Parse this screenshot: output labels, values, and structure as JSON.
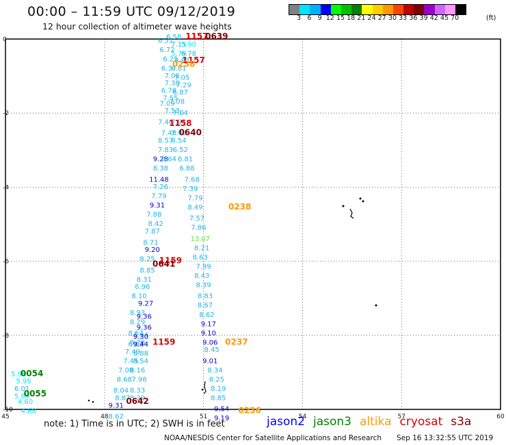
{
  "title": "00:00 – 11:59 UTC 09/12/2019",
  "subtitle": "12 hour collection of altimeter wave heights",
  "scale": {
    "colors": [
      "#808080",
      "#00e5ff",
      "#00b0ff",
      "#0000ff",
      "#00ff00",
      "#00c000",
      "#008000",
      "#ffff00",
      "#ffcc00",
      "#ff9900",
      "#ff4400",
      "#c00000",
      "#800000",
      "#9900cc",
      "#cc66ff",
      "#ff99ff",
      "#000000"
    ],
    "labels": [
      "3",
      "6",
      "9",
      "12",
      "15",
      "18",
      "21",
      "24",
      "27",
      "30",
      "33",
      "36",
      "39",
      "42",
      "45",
      "70"
    ],
    "unit": "(ft)"
  },
  "axes": {
    "x_ticks": [
      "45",
      "48",
      "51",
      "54",
      "57",
      "60"
    ],
    "y_ticks": [
      "0",
      "-2",
      "-4",
      "-6",
      "-8",
      "-10"
    ]
  },
  "note": "note:  1) Time is in UTC;  2) SWH is in feet",
  "satellites": [
    {
      "name": "jason2",
      "color": "#0000ff"
    },
    {
      "name": "jason3",
      "color": "#008000"
    },
    {
      "name": "altika",
      "color": "#ff9900"
    },
    {
      "name": "cryosat",
      "color": "#dd0000"
    },
    {
      "name": "s3a",
      "color": "#800000"
    }
  ],
  "credit": "NOAA/NESDIS Center for Satellite Applications and Research",
  "timestamp": "Sep 16 13:32:55 UTC 2019",
  "chart_data": {
    "type": "scatter",
    "xlim": [
      45,
      60
    ],
    "ylim": [
      -10,
      0
    ],
    "grid": true,
    "track_times": [
      {
        "label": "1157",
        "lon": 50.8,
        "lat": 0.0,
        "sat": "cryosat"
      },
      {
        "label": "0639",
        "lon": 51.4,
        "lat": 0.0,
        "sat": "s3a"
      },
      {
        "label": "1157",
        "lon": 50.7,
        "lat": -0.65,
        "sat": "cryosat"
      },
      {
        "label": "0238",
        "lon": 50.4,
        "lat": -0.75,
        "sat": "altika"
      },
      {
        "label": "1158",
        "lon": 50.3,
        "lat": -2.35,
        "sat": "cryosat"
      },
      {
        "label": "0640",
        "lon": 50.6,
        "lat": -2.6,
        "sat": "s3a"
      },
      {
        "label": "0238",
        "lon": 52.1,
        "lat": -4.6,
        "sat": "altika"
      },
      {
        "label": "1159",
        "lon": 50.0,
        "lat": -6.05,
        "sat": "cryosat"
      },
      {
        "label": "0641",
        "lon": 49.8,
        "lat": -6.15,
        "sat": "s3a"
      },
      {
        "label": "1159",
        "lon": 49.8,
        "lat": -8.25,
        "sat": "cryosat"
      },
      {
        "label": "0237",
        "lon": 52.0,
        "lat": -8.25,
        "sat": "altika"
      },
      {
        "label": "0054",
        "lon": 45.8,
        "lat": -9.1,
        "sat": "jason3"
      },
      {
        "label": "0055",
        "lon": 45.9,
        "lat": -9.65,
        "sat": "jason3"
      },
      {
        "label": "0642",
        "lon": 49.0,
        "lat": -9.85,
        "sat": "s3a"
      },
      {
        "label": "0236",
        "lon": 52.4,
        "lat": -10.1,
        "sat": "altika"
      }
    ],
    "points": [
      {
        "lon": 49.85,
        "lat": -0.1,
        "swh": "6.51"
      },
      {
        "lon": 50.1,
        "lat": -0.0,
        "swh": "6.58"
      },
      {
        "lon": 50.25,
        "lat": -0.2,
        "swh": "7.15"
      },
      {
        "lon": 50.55,
        "lat": -0.2,
        "swh": "5.90"
      },
      {
        "lon": 49.9,
        "lat": -0.35,
        "swh": "6.72"
      },
      {
        "lon": 50.25,
        "lat": -0.45,
        "swh": "5.79"
      },
      {
        "lon": 50.55,
        "lat": -0.45,
        "swh": "6.78"
      },
      {
        "lon": 50.0,
        "lat": -0.6,
        "swh": "6.25"
      },
      {
        "lon": 50.35,
        "lat": -0.65,
        "swh": "6.82"
      },
      {
        "lon": 49.95,
        "lat": -0.85,
        "swh": "6.37"
      },
      {
        "lon": 50.25,
        "lat": -0.85,
        "swh": "6.81"
      },
      {
        "lon": 50.05,
        "lat": -1.05,
        "swh": "7.06"
      },
      {
        "lon": 50.35,
        "lat": -1.1,
        "swh": "7.05"
      },
      {
        "lon": 50.05,
        "lat": -1.25,
        "swh": "7.38"
      },
      {
        "lon": 50.4,
        "lat": -1.3,
        "swh": "7.29"
      },
      {
        "lon": 49.95,
        "lat": -1.45,
        "swh": "6.78"
      },
      {
        "lon": 50.3,
        "lat": -1.5,
        "swh": "6.87"
      },
      {
        "lon": 50.0,
        "lat": -1.65,
        "swh": "7.55"
      },
      {
        "lon": 50.2,
        "lat": -1.75,
        "swh": "7.08"
      },
      {
        "lon": 49.9,
        "lat": -1.8,
        "swh": "7.09"
      },
      {
        "lon": 50.05,
        "lat": -2.0,
        "swh": "7.53"
      },
      {
        "lon": 50.3,
        "lat": -2.05,
        "swh": "7.04"
      },
      {
        "lon": 49.85,
        "lat": -2.3,
        "swh": "7.46"
      },
      {
        "lon": 50.25,
        "lat": -2.3,
        "swh": "7.91"
      },
      {
        "lon": 49.95,
        "lat": -2.6,
        "swh": "7.48"
      },
      {
        "lon": 50.25,
        "lat": -2.6,
        "swh": "7.90"
      },
      {
        "lon": 49.85,
        "lat": -2.8,
        "swh": "8.57"
      },
      {
        "lon": 50.25,
        "lat": -2.8,
        "swh": "8.54"
      },
      {
        "lon": 49.85,
        "lat": -3.05,
        "swh": "7.83"
      },
      {
        "lon": 50.3,
        "lat": -3.05,
        "swh": "6.52"
      },
      {
        "lon": 49.7,
        "lat": -3.3,
        "swh": "9.28"
      },
      {
        "lon": 49.95,
        "lat": -3.3,
        "swh": "8.64"
      },
      {
        "lon": 50.45,
        "lat": -3.3,
        "swh": "6.81"
      },
      {
        "lon": 49.7,
        "lat": -3.55,
        "swh": "8.38"
      },
      {
        "lon": 50.5,
        "lat": -3.55,
        "swh": "6.88"
      },
      {
        "lon": 49.65,
        "lat": -3.85,
        "swh": "11.48"
      },
      {
        "lon": 50.65,
        "lat": -3.85,
        "swh": "7.68"
      },
      {
        "lon": 49.7,
        "lat": -4.05,
        "swh": "7.26"
      },
      {
        "lon": 50.6,
        "lat": -4.1,
        "swh": "7.39"
      },
      {
        "lon": 49.65,
        "lat": -4.3,
        "swh": "7.79"
      },
      {
        "lon": 50.75,
        "lat": -4.35,
        "swh": "7.79"
      },
      {
        "lon": 49.6,
        "lat": -4.55,
        "swh": "9.31"
      },
      {
        "lon": 50.75,
        "lat": -4.6,
        "swh": "8.49"
      },
      {
        "lon": 49.5,
        "lat": -4.8,
        "swh": "7.88"
      },
      {
        "lon": 50.8,
        "lat": -4.9,
        "swh": "7.57"
      },
      {
        "lon": 49.55,
        "lat": -5.05,
        "swh": "8.42"
      },
      {
        "lon": 50.85,
        "lat": -5.15,
        "swh": "7.86"
      },
      {
        "lon": 49.45,
        "lat": -5.25,
        "swh": "7.87"
      },
      {
        "lon": 50.9,
        "lat": -5.45,
        "swh": "13.07"
      },
      {
        "lon": 49.4,
        "lat": -5.55,
        "swh": "8.71"
      },
      {
        "lon": 50.95,
        "lat": -5.7,
        "swh": "8.21"
      },
      {
        "lon": 49.45,
        "lat": -5.75,
        "swh": "9.20"
      },
      {
        "lon": 50.9,
        "lat": -5.95,
        "swh": "8.63"
      },
      {
        "lon": 49.3,
        "lat": -6.0,
        "swh": "8.25"
      },
      {
        "lon": 51.0,
        "lat": -6.2,
        "swh": "7.99"
      },
      {
        "lon": 49.3,
        "lat": -6.3,
        "swh": "8.85"
      },
      {
        "lon": 50.95,
        "lat": -6.45,
        "swh": "8.43"
      },
      {
        "lon": 49.2,
        "lat": -6.55,
        "swh": "8.31"
      },
      {
        "lon": 51.0,
        "lat": -6.7,
        "swh": "8.39"
      },
      {
        "lon": 49.15,
        "lat": -6.75,
        "swh": "6.96"
      },
      {
        "lon": 51.05,
        "lat": -7.0,
        "swh": "8.83"
      },
      {
        "lon": 49.05,
        "lat": -7.0,
        "swh": "8.10"
      },
      {
        "lon": 51.05,
        "lat": -7.25,
        "swh": "8.67"
      },
      {
        "lon": 49.25,
        "lat": -7.2,
        "swh": "9.27"
      },
      {
        "lon": 51.1,
        "lat": -7.5,
        "swh": "8.62"
      },
      {
        "lon": 49.0,
        "lat": -7.45,
        "swh": "8.93"
      },
      {
        "lon": 51.15,
        "lat": -7.75,
        "swh": "9.17"
      },
      {
        "lon": 49.2,
        "lat": -7.55,
        "swh": "9.36"
      },
      {
        "lon": 51.15,
        "lat": -8.0,
        "swh": "9.10"
      },
      {
        "lon": 49.0,
        "lat": -7.7,
        "swh": "8.29"
      },
      {
        "lon": 51.2,
        "lat": -8.25,
        "swh": "9.06"
      },
      {
        "lon": 49.2,
        "lat": -7.85,
        "swh": "9.36"
      },
      {
        "lon": 51.25,
        "lat": -8.45,
        "swh": "8.45"
      },
      {
        "lon": 48.95,
        "lat": -8.0,
        "swh": "8.67"
      },
      {
        "lon": 51.2,
        "lat": -8.75,
        "swh": "9.01"
      },
      {
        "lon": 49.1,
        "lat": -8.05,
        "swh": "7.94"
      },
      {
        "lon": 51.35,
        "lat": -9.0,
        "swh": "8.34"
      },
      {
        "lon": 49.0,
        "lat": -8.25,
        "swh": "8.78"
      },
      {
        "lon": 51.4,
        "lat": -9.25,
        "swh": "8.25"
      },
      {
        "lon": 49.1,
        "lat": -8.1,
        "swh": "9.30"
      },
      {
        "lon": 51.45,
        "lat": -9.5,
        "swh": "8.19"
      },
      {
        "lon": 48.95,
        "lat": -8.3,
        "swh": "6.62"
      },
      {
        "lon": 51.45,
        "lat": -9.75,
        "swh": "8.85"
      },
      {
        "lon": 49.1,
        "lat": -8.3,
        "swh": "9.44"
      },
      {
        "lon": 51.55,
        "lat": -10.05,
        "swh": "9.54"
      },
      {
        "lon": 48.85,
        "lat": -8.5,
        "swh": "7.49"
      },
      {
        "lon": 49.1,
        "lat": -8.55,
        "swh": "8.88"
      },
      {
        "lon": 51.55,
        "lat": -10.3,
        "swh": "9.19"
      },
      {
        "lon": 48.8,
        "lat": -8.75,
        "swh": "7.45"
      },
      {
        "lon": 49.1,
        "lat": -8.75,
        "swh": "8.54"
      },
      {
        "lon": 48.65,
        "lat": -9.0,
        "swh": "7.08"
      },
      {
        "lon": 49.0,
        "lat": -9.0,
        "swh": "8.16"
      },
      {
        "lon": 48.6,
        "lat": -9.25,
        "swh": "8.68"
      },
      {
        "lon": 49.05,
        "lat": -9.25,
        "swh": "7.98"
      },
      {
        "lon": 48.5,
        "lat": -9.55,
        "swh": "8.04"
      },
      {
        "lon": 49.0,
        "lat": -9.55,
        "swh": "8.33"
      },
      {
        "lon": 48.55,
        "lat": -9.75,
        "swh": "8.87"
      },
      {
        "lon": 49.0,
        "lat": -9.75,
        "swh": "8.29"
      },
      {
        "lon": 48.35,
        "lat": -9.95,
        "swh": "9.31"
      },
      {
        "lon": 48.35,
        "lat": -10.25,
        "swh": "8.62"
      },
      {
        "lon": 45.4,
        "lat": -9.1,
        "swh": "5.90"
      },
      {
        "lon": 45.55,
        "lat": -9.3,
        "swh": "5.95"
      },
      {
        "lon": 45.5,
        "lat": -9.5,
        "swh": "6.01"
      },
      {
        "lon": 45.5,
        "lat": -9.7,
        "swh": "5.84"
      },
      {
        "lon": 45.6,
        "lat": -9.85,
        "swh": "4.60"
      },
      {
        "lon": 45.7,
        "lat": -10.1,
        "swh": "4.68"
      }
    ]
  }
}
